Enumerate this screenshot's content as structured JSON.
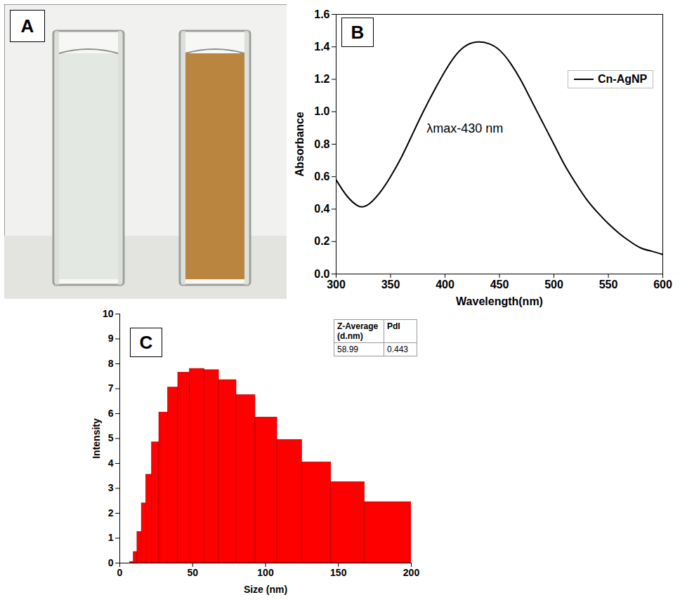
{
  "chart_data": [
    {
      "panel": "A",
      "type": "image",
      "colors": [
        "#e4e8e2",
        "#b9853f"
      ]
    },
    {
      "panel": "B",
      "type": "line",
      "x": [
        300,
        310,
        320,
        325,
        330,
        340,
        350,
        360,
        370,
        380,
        390,
        400,
        410,
        420,
        430,
        440,
        450,
        460,
        470,
        480,
        490,
        500,
        510,
        520,
        530,
        540,
        550,
        560,
        570,
        580,
        590,
        600
      ],
      "series": [
        {
          "name": "Cn-AgNP",
          "color": "#000000",
          "values": [
            0.58,
            0.48,
            0.42,
            0.415,
            0.43,
            0.5,
            0.6,
            0.72,
            0.86,
            1.0,
            1.13,
            1.25,
            1.35,
            1.41,
            1.43,
            1.42,
            1.38,
            1.3,
            1.19,
            1.06,
            0.93,
            0.8,
            0.67,
            0.56,
            0.46,
            0.38,
            0.31,
            0.25,
            0.2,
            0.16,
            0.14,
            0.12
          ]
        }
      ],
      "x_label": "Wavelength(nm)",
      "y_label": "Absorbance",
      "xlim": [
        300,
        600
      ],
      "xticks": [
        300,
        350,
        400,
        450,
        500,
        550,
        600
      ],
      "ylim": [
        0,
        1.6
      ],
      "yticks": [
        {
          "value": 0,
          "label": "0.0"
        },
        0.2,
        0.4,
        0.6,
        0.8,
        {
          "value": 1,
          "label": "1.0"
        },
        1.2,
        1.4,
        1.6
      ],
      "annotations": [
        "λmax-430 nm"
      ],
      "legend": "top-right",
      "grid": false
    },
    {
      "panel": "C",
      "type": "histogram",
      "bins": [
        7,
        9.5,
        12,
        15,
        18,
        22,
        27,
        33,
        40,
        48,
        58,
        68,
        80,
        93,
        108,
        125,
        145,
        168,
        200
      ],
      "values": [
        0.05,
        0.45,
        1.25,
        2.4,
        3.55,
        4.85,
        6.05,
        7.05,
        7.65,
        7.8,
        7.75,
        7.35,
        6.75,
        5.85,
        4.95,
        4.05,
        3.25,
        2.45
      ],
      "color": "#ff0000",
      "x_label": "Size (nm)",
      "y_label": "Intensity",
      "xlim": [
        0,
        200
      ],
      "xticks": [
        0,
        50,
        100,
        150,
        200
      ],
      "ylim": [
        0,
        10
      ],
      "yticks": [
        0,
        1,
        2,
        3,
        4,
        5,
        6,
        7,
        8,
        9,
        10
      ],
      "table": {
        "columns": [
          "Z-Average (d.nm)",
          "PdI"
        ],
        "rows": [
          [
            "58.99",
            "0.443"
          ]
        ]
      },
      "grid": false
    }
  ]
}
